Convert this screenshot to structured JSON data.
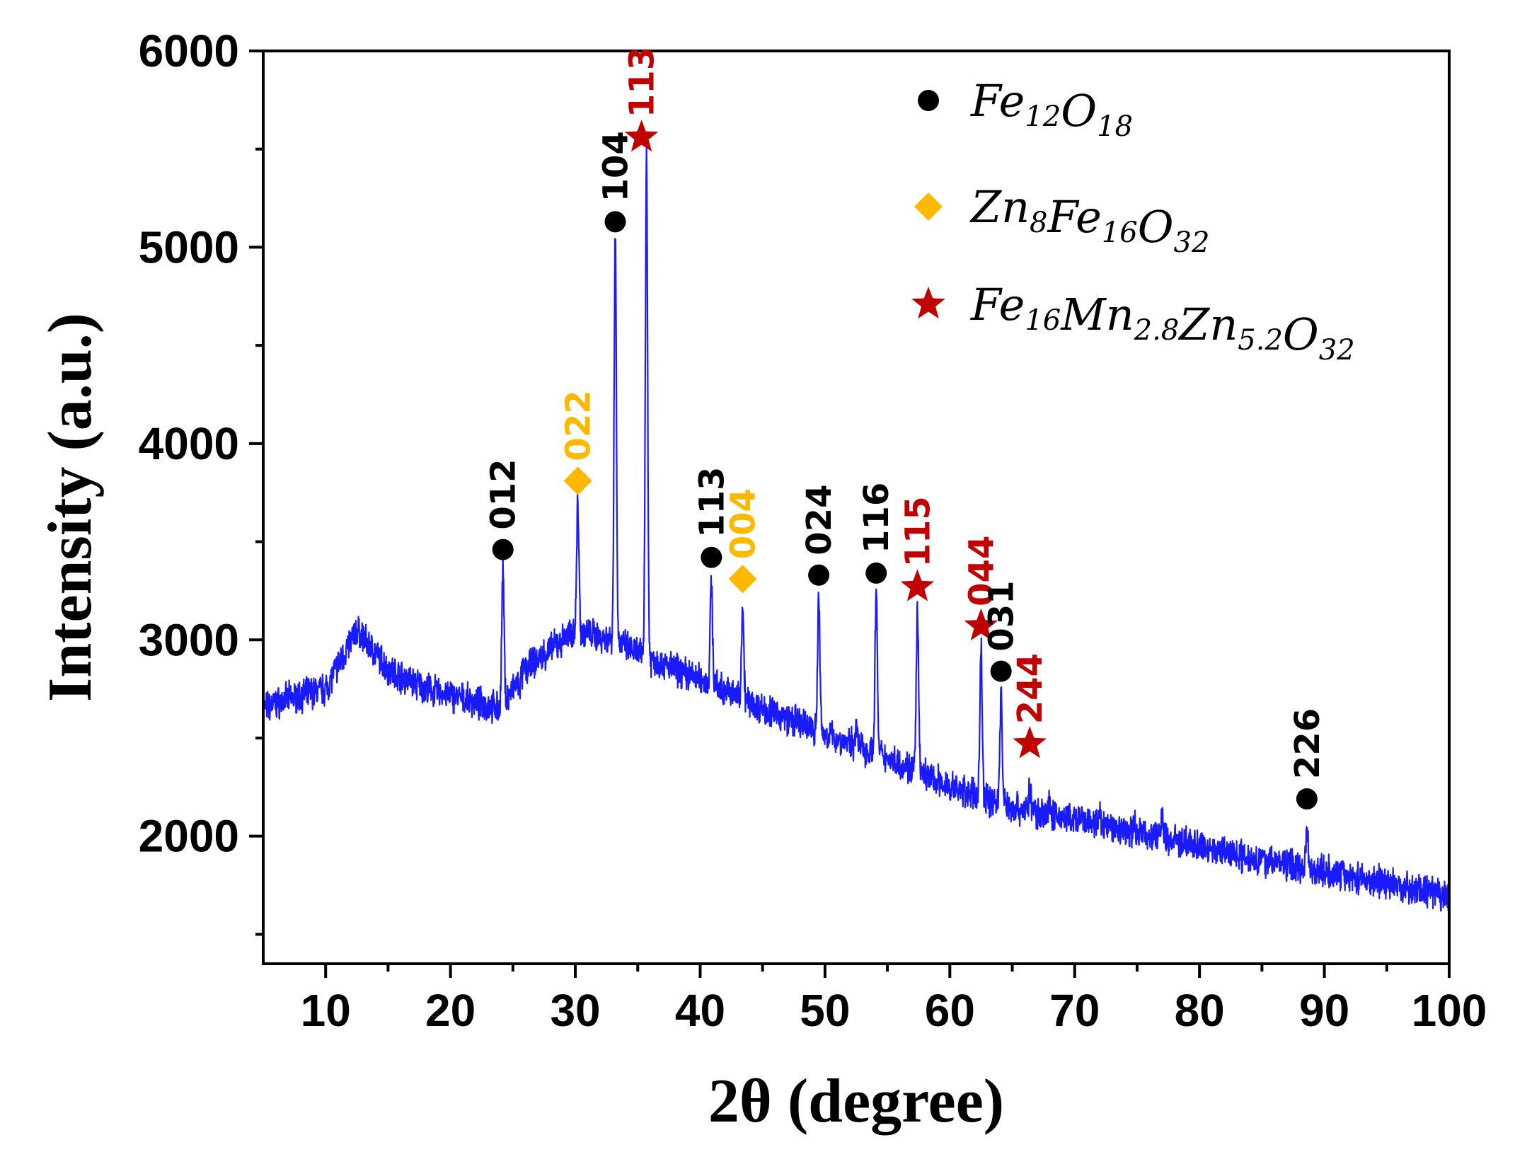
{
  "chart_data": {
    "type": "line",
    "xlabel": "2θ (degree)",
    "ylabel": "Intensity (a.u.)",
    "xlim": [
      5,
      100
    ],
    "ylim": [
      1350,
      6000
    ],
    "x_ticks": [
      10,
      20,
      30,
      40,
      50,
      60,
      70,
      80,
      90,
      100
    ],
    "y_ticks": [
      2000,
      3000,
      4000,
      5000,
      6000
    ],
    "x_tick_labels": [
      "10",
      "20",
      "30",
      "40",
      "50",
      "60",
      "70",
      "80",
      "90",
      "100"
    ],
    "y_tick_labels": [
      "2000",
      "3000",
      "4000",
      "5000",
      "6000"
    ],
    "series": [
      {
        "color": "#1a1aff",
        "baseline": [
          [
            5,
            2650
          ],
          [
            7,
            2700
          ],
          [
            10,
            2750
          ],
          [
            12.5,
            3050
          ],
          [
            15,
            2850
          ],
          [
            18,
            2750
          ],
          [
            22,
            2680
          ],
          [
            24,
            2650
          ],
          [
            26,
            2850
          ],
          [
            28,
            2950
          ],
          [
            30,
            3050
          ],
          [
            33,
            3000
          ],
          [
            36,
            2900
          ],
          [
            40,
            2800
          ],
          [
            45,
            2650
          ],
          [
            50,
            2520
          ],
          [
            55,
            2400
          ],
          [
            60,
            2250
          ],
          [
            65,
            2150
          ],
          [
            70,
            2080
          ],
          [
            75,
            2020
          ],
          [
            80,
            1950
          ],
          [
            85,
            1880
          ],
          [
            90,
            1820
          ],
          [
            95,
            1760
          ],
          [
            100,
            1690
          ]
        ],
        "peaks": [
          [
            24.2,
            3350
          ],
          [
            25.5,
            2750
          ],
          [
            30.2,
            3700
          ],
          [
            33.2,
            5080
          ],
          [
            35.7,
            5450
          ],
          [
            40.9,
            3300
          ],
          [
            43.4,
            3180
          ],
          [
            49.5,
            3210
          ],
          [
            52.5,
            2560
          ],
          [
            54.1,
            3250
          ],
          [
            57.4,
            3140
          ],
          [
            62.5,
            2960
          ],
          [
            64.1,
            2720
          ],
          [
            66.4,
            2230
          ],
          [
            68,
            2160
          ],
          [
            72,
            2100
          ],
          [
            74.8,
            2060
          ],
          [
            77,
            2100
          ],
          [
            88.6,
            2050
          ]
        ]
      }
    ],
    "legend": {
      "position": "top-right",
      "entries": [
        {
          "marker": "circle",
          "color": "#000000",
          "label": [
            [
              "Fe",
              "12"
            ],
            [
              "O",
              "18"
            ]
          ]
        },
        {
          "marker": "diamond",
          "color": "#FFB800",
          "label": [
            [
              "Zn",
              "8"
            ],
            [
              "Fe",
              "16"
            ],
            [
              "O",
              "32"
            ]
          ]
        },
        {
          "marker": "star",
          "color": "#C00000",
          "label": [
            [
              "Fe",
              "16"
            ],
            [
              "Mn",
              "2.8"
            ],
            [
              "Zn",
              "5.2"
            ],
            [
              "O",
              "32"
            ]
          ]
        }
      ]
    },
    "annotations": [
      {
        "x": 24.2,
        "y": 3460,
        "marker": "circle",
        "label": "012",
        "color": "#000000"
      },
      {
        "x": 30.2,
        "y": 3810,
        "marker": "diamond",
        "label": "022",
        "color": "#FFB800"
      },
      {
        "x": 33.2,
        "y": 5130,
        "marker": "circle",
        "label": "104",
        "color": "#000000"
      },
      {
        "x": 35.3,
        "y": 5560,
        "marker": "star",
        "label": "113",
        "color": "#C00000"
      },
      {
        "x": 40.9,
        "y": 3420,
        "marker": "circle",
        "label": "113",
        "color": "#000000"
      },
      {
        "x": 43.4,
        "y": 3310,
        "marker": "diamond",
        "label": "004",
        "color": "#FFB800"
      },
      {
        "x": 49.5,
        "y": 3330,
        "marker": "circle",
        "label": "024",
        "color": "#000000"
      },
      {
        "x": 54.1,
        "y": 3340,
        "marker": "circle",
        "label": "116",
        "color": "#000000"
      },
      {
        "x": 57.4,
        "y": 3270,
        "marker": "star",
        "label": "115",
        "color": "#C00000"
      },
      {
        "x": 62.5,
        "y": 3070,
        "marker": "star",
        "label": "044",
        "color": "#C00000"
      },
      {
        "x": 64.1,
        "y": 2840,
        "marker": "circle",
        "label": "031",
        "color": "#000000"
      },
      {
        "x": 66.4,
        "y": 2470,
        "marker": "star",
        "label": "244",
        "color": "#C00000"
      },
      {
        "x": 88.6,
        "y": 2190,
        "marker": "circle",
        "label": "226",
        "color": "#000000"
      }
    ]
  }
}
